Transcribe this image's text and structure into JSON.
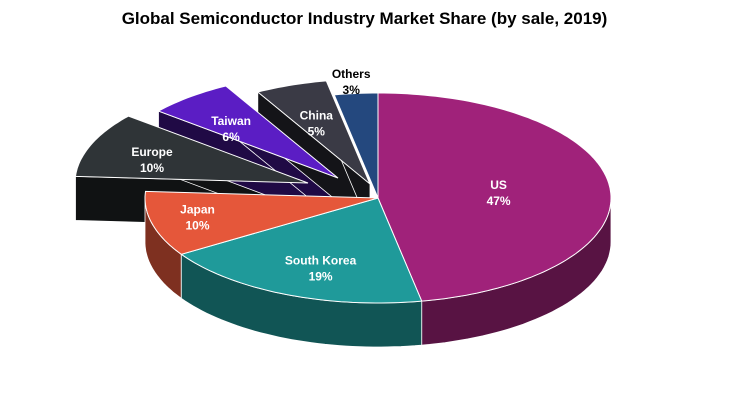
{
  "chart_data": {
    "type": "pie",
    "title": "Global Semiconductor Industry Market Share (by sale, 2019)",
    "categories": [
      "US",
      "South Korea",
      "Japan",
      "Europe",
      "Taiwan",
      "China",
      "Others"
    ],
    "values": [
      47,
      19,
      10,
      10,
      6,
      5,
      3
    ],
    "value_labels": [
      "47%",
      "19%",
      "10%",
      "10%",
      "6%",
      "5%",
      "3%"
    ],
    "colors": [
      "#A0227A",
      "#1F9A9A",
      "#E5573A",
      "#2F3437",
      "#5B1DC4",
      "#3A3A45",
      "#24487E"
    ],
    "exploded": [
      "Europe",
      "Taiwan",
      "China"
    ],
    "style": "3d-pie",
    "legend": "none",
    "data_labels": "inside"
  }
}
